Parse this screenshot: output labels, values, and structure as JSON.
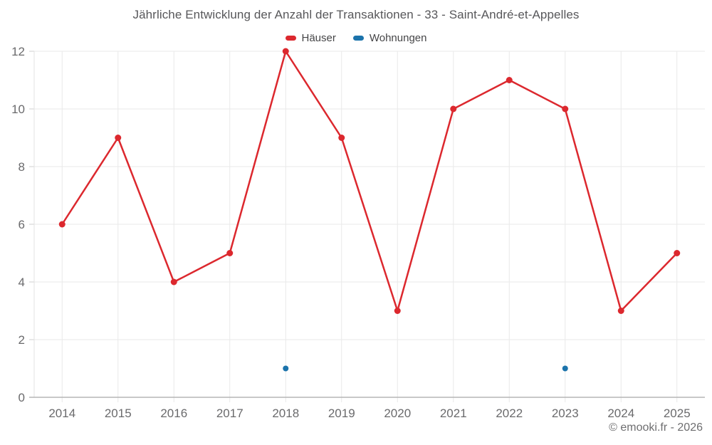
{
  "page": {
    "attribution": "© emooki.fr - 2026"
  },
  "chart_data": {
    "type": "line",
    "title": "Jährliche Entwicklung der Anzahl der Transaktionen - 33 - Saint-André-et-Appelles",
    "categories": [
      "2014",
      "2015",
      "2016",
      "2017",
      "2018",
      "2019",
      "2020",
      "2021",
      "2022",
      "2023",
      "2024",
      "2025"
    ],
    "series": [
      {
        "name": "Häuser",
        "color": "#dc282e",
        "values": [
          6,
          9,
          4,
          5,
          12,
          9,
          3,
          10,
          11,
          10,
          3,
          5
        ]
      },
      {
        "name": "Wohnungen",
        "color": "#1b73ab",
        "values": [
          null,
          null,
          null,
          null,
          1,
          null,
          null,
          null,
          null,
          1,
          null,
          null
        ]
      }
    ],
    "xlabel": "",
    "ylabel": "",
    "ylim": [
      0,
      12
    ],
    "ytick_step": 2,
    "yticks": [
      0,
      2,
      4,
      6,
      8,
      10,
      12
    ],
    "grid": true,
    "legend_position": "top",
    "colors": {
      "title_text": "#57575a",
      "legend_text": "#454547",
      "axis_label_text": "#6a6a6c",
      "gridline": "#e9e9e9",
      "axis_line": "#e3e3e3",
      "baseline": "#b5b5b5",
      "tick": "#cfcfcf",
      "attribution_text": "#6e6e70"
    }
  }
}
